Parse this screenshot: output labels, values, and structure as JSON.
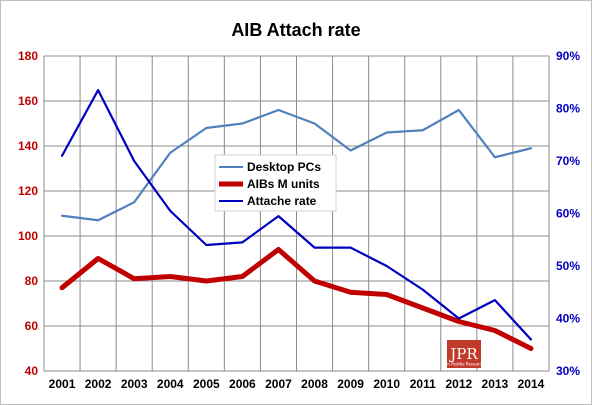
{
  "chart_data": {
    "type": "line",
    "title": "AIB Attach rate",
    "categories": [
      "2001",
      "2002",
      "2003",
      "2004",
      "2005",
      "2006",
      "2007",
      "2008",
      "2009",
      "2010",
      "2011",
      "2012",
      "2013",
      "2014"
    ],
    "y_left": {
      "ylim": [
        40,
        180
      ],
      "ticks": [
        40,
        60,
        80,
        100,
        120,
        140,
        160,
        180
      ],
      "color": "#c00000"
    },
    "y_right": {
      "ylim": [
        30,
        90
      ],
      "ticks": [
        "30%",
        "40%",
        "50%",
        "60%",
        "70%",
        "80%",
        "90%"
      ],
      "color": "#0000c0"
    },
    "series": [
      {
        "name": "Desktop PCs",
        "axis": "left",
        "color": "#4f81bd",
        "values": [
          109,
          107,
          115,
          137,
          148,
          150,
          156,
          150,
          138,
          146,
          147,
          156,
          135,
          139
        ]
      },
      {
        "name": "AIBs M units",
        "axis": "left",
        "color": "#c00000",
        "values": [
          77,
          90,
          81,
          82,
          80,
          82,
          94,
          80,
          75,
          74,
          68,
          62,
          58,
          50
        ]
      },
      {
        "name": "Attache rate",
        "axis": "right",
        "color": "#0000c0",
        "values": [
          71,
          83.5,
          70,
          60.5,
          54,
          54.5,
          59.5,
          53.5,
          53.5,
          50,
          45.5,
          40,
          43.5,
          36
        ]
      }
    ],
    "grid": true,
    "legend_position": "center-left"
  },
  "logo": {
    "text": "JPR",
    "subtext": "Jon Peddie Research"
  }
}
